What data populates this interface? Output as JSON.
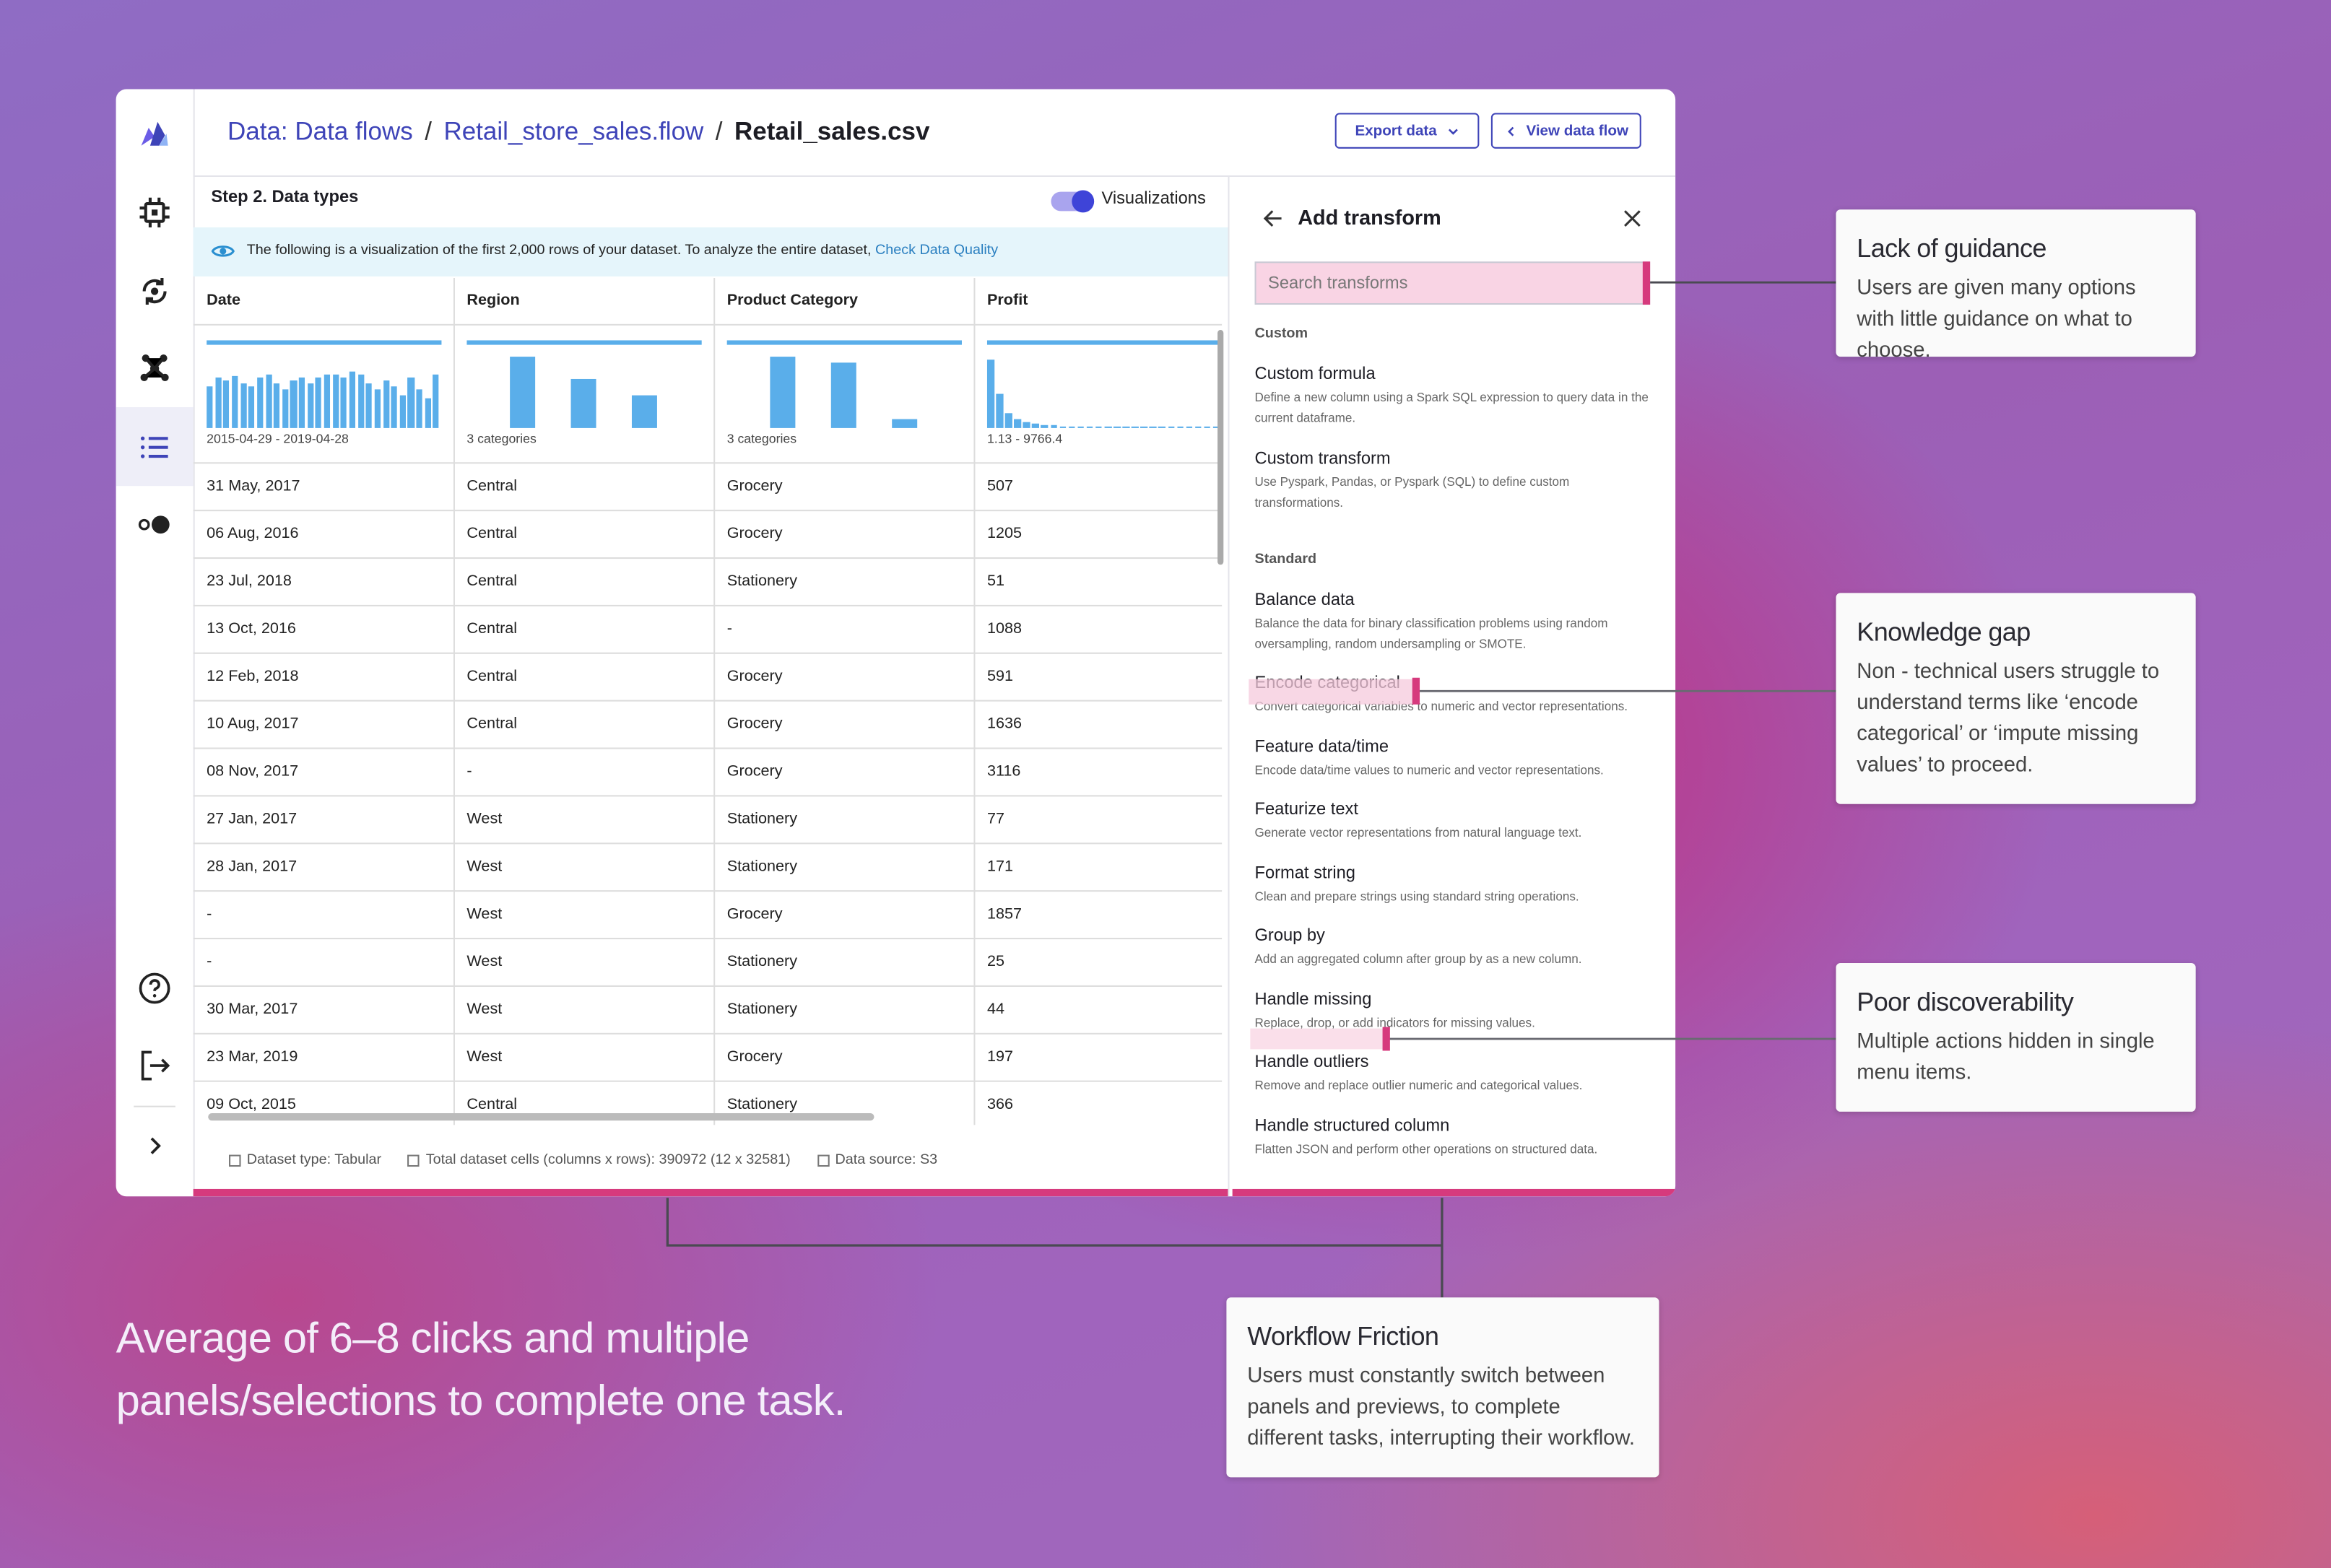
{
  "breadcrumb": [
    "Data: Data flows",
    "Retail_store_sales.flow",
    "Retail_sales.csv"
  ],
  "breadcrumb_separator": "/",
  "buttons": {
    "export": "Export data",
    "view": "View data flow"
  },
  "step_title": "Step 2. Data types",
  "toggle_label": "Visualizations",
  "banner": {
    "text": "The following is a visualization of the first 2,000 rows of your dataset. To analyze the entire dataset,",
    "link": "Check Data Quality"
  },
  "table": {
    "columns": [
      "Date",
      "Region",
      "Product Category",
      "Profit"
    ],
    "summaries": [
      "2015-04-29 - 2019-04-28",
      "3 categories",
      "3 categories",
      "1.13 - 9766.4"
    ],
    "histograms": [
      [
        28,
        34,
        32,
        35,
        30,
        28,
        34,
        36,
        30,
        26,
        32,
        34,
        30,
        34,
        36,
        36,
        34,
        38,
        36,
        30,
        26,
        32,
        28,
        22,
        34,
        26,
        20,
        36
      ],
      [
        48,
        33,
        22
      ],
      [
        48,
        44,
        6
      ],
      [
        46,
        23,
        10,
        6,
        4,
        3,
        2,
        2,
        1,
        1,
        1,
        1,
        1,
        1,
        1,
        1,
        1,
        1,
        1,
        1,
        1,
        1,
        1,
        1,
        1,
        1
      ]
    ],
    "rows": [
      [
        "31 May, 2017",
        "Central",
        "Grocery",
        "507"
      ],
      [
        "06 Aug, 2016",
        "Central",
        "Grocery",
        "1205"
      ],
      [
        "23 Jul, 2018",
        "Central",
        "Stationery",
        "51"
      ],
      [
        "13 Oct, 2016",
        "Central",
        "-",
        "1088"
      ],
      [
        "12 Feb, 2018",
        "Central",
        "Grocery",
        "591"
      ],
      [
        "10 Aug, 2017",
        "Central",
        "Grocery",
        "1636"
      ],
      [
        "08 Nov, 2017",
        "-",
        "Grocery",
        "3116"
      ],
      [
        "27 Jan, 2017",
        "West",
        "Stationery",
        "77"
      ],
      [
        "28 Jan, 2017",
        "West",
        "Stationery",
        "171"
      ],
      [
        "-",
        "West",
        "Grocery",
        "1857"
      ],
      [
        "-",
        "West",
        "Stationery",
        "25"
      ],
      [
        "30 Mar, 2017",
        "West",
        "Stationery",
        "44"
      ],
      [
        "23 Mar, 2019",
        "West",
        "Grocery",
        "197"
      ],
      [
        "09 Oct, 2015",
        "Central",
        "Stationery",
        "366"
      ]
    ]
  },
  "footer": [
    "Dataset type: Tabular",
    "Total dataset cells (columns x rows): 390972 (12 x 32581)",
    "Data source: S3"
  ],
  "panel": {
    "title": "Add transform",
    "search_placeholder": "Search transforms",
    "sections": [
      {
        "name": "Custom",
        "items": [
          {
            "title": "Custom formula",
            "description": "Define a new column using a Spark SQL expression to query data in the current dataframe."
          },
          {
            "title": "Custom transform",
            "description": "Use Pyspark, Pandas, or Pyspark (SQL) to define custom transformations."
          }
        ]
      },
      {
        "name": "Standard",
        "items": [
          {
            "title": "Balance data",
            "description": "Balance the data for binary classification problems using random oversampling, random undersampling or SMOTE."
          },
          {
            "title": "Encode categorical",
            "description": "Convert categorical variables to numeric and vector representations."
          },
          {
            "title": "Feature data/time",
            "description": "Encode data/time values to numeric and vector representations."
          },
          {
            "title": "Featurize text",
            "description": "Generate vector representations from natural language text."
          },
          {
            "title": "Format string",
            "description": "Clean and prepare strings using standard string operations."
          },
          {
            "title": "Group by",
            "description": "Add an aggregated column after group by as a new column."
          },
          {
            "title": "Handle missing",
            "description": "Replace, drop, or add indicators for missing values."
          },
          {
            "title": "Handle outliers",
            "description": "Remove and replace outlier numeric and categorical values."
          },
          {
            "title": "Handle structured column",
            "description": "Flatten JSON and perform other operations on structured data."
          }
        ]
      }
    ]
  },
  "annotations": [
    {
      "title": "Lack of guidance",
      "text": "Users are given many options with little guidance on what to choose."
    },
    {
      "title": "Knowledge gap",
      "text": "Non - technical users struggle to understand terms like ‘encode categorical’ or ‘impute missing values’ to proceed."
    },
    {
      "title": "Poor discoverability",
      "text": "Multiple actions hidden in single menu items."
    },
    {
      "title": "Workflow Friction",
      "text": "Users must constantly switch between panels and previews, to complete different tasks, interrupting their workflow."
    }
  ],
  "summary": "Average of  6–8 clicks and multiple panels/selections to complete one task."
}
